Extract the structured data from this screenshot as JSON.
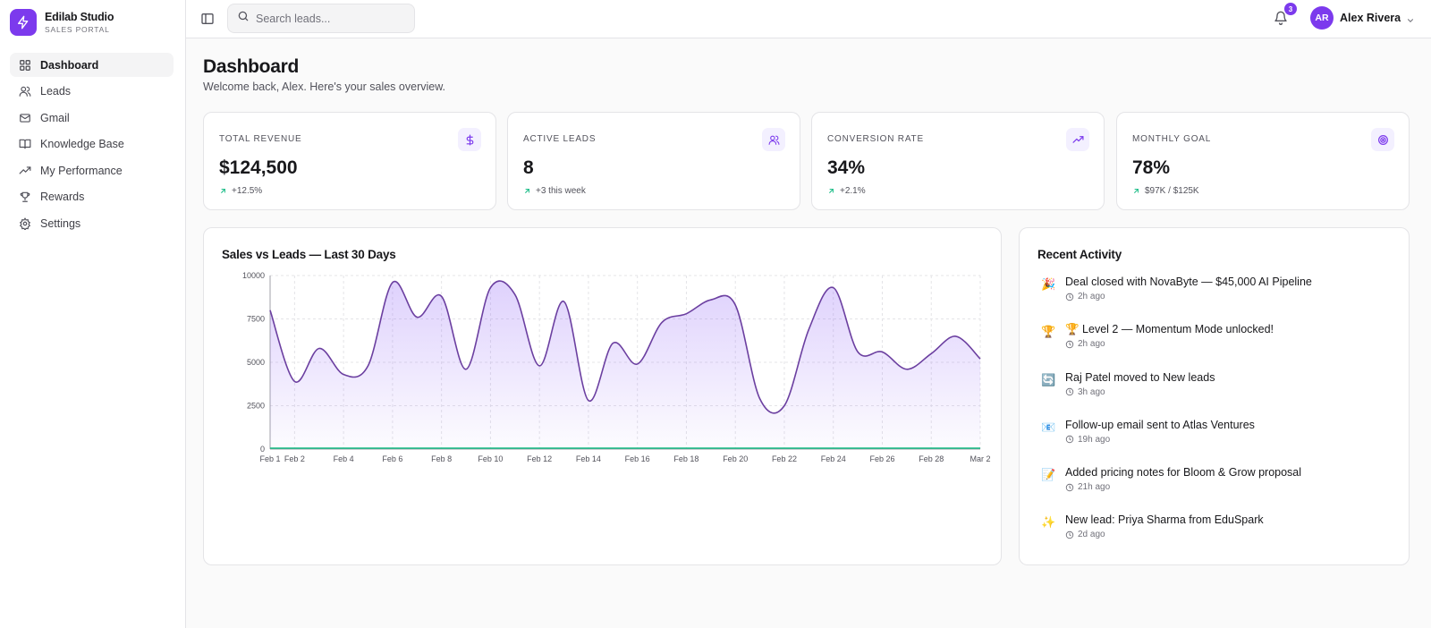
{
  "brand": {
    "name": "Edilab Studio",
    "subtitle": "SALES PORTAL"
  },
  "sidebar": {
    "items": [
      {
        "label": "Dashboard",
        "icon": "grid-icon",
        "active": true
      },
      {
        "label": "Leads",
        "icon": "users-icon"
      },
      {
        "label": "Gmail",
        "icon": "mail-icon"
      },
      {
        "label": "Knowledge Base",
        "icon": "book-icon"
      },
      {
        "label": "My Performance",
        "icon": "trending-up-icon"
      },
      {
        "label": "Rewards",
        "icon": "trophy-icon"
      },
      {
        "label": "Settings",
        "icon": "gear-icon"
      }
    ]
  },
  "header": {
    "search_placeholder": "Search leads...",
    "notifications_count": "3",
    "user": {
      "initials": "AR",
      "name": "Alex Rivera"
    }
  },
  "page": {
    "title": "Dashboard",
    "subtitle": "Welcome back, Alex. Here's your sales overview."
  },
  "stats": [
    {
      "label": "TOTAL REVENUE",
      "value": "$124,500",
      "delta": "+12.5%",
      "icon": "dollar-icon"
    },
    {
      "label": "ACTIVE LEADS",
      "value": "8",
      "delta": "+3 this week",
      "icon": "users-icon"
    },
    {
      "label": "CONVERSION RATE",
      "value": "34%",
      "delta": "+2.1%",
      "icon": "trending-up-icon"
    },
    {
      "label": "MONTHLY GOAL",
      "value": "78%",
      "delta": "$97K / $125K",
      "icon": "target-icon"
    }
  ],
  "colors": {
    "accent": "#7c3aed",
    "line": "#6b3fa0",
    "leads_line": "#10b981"
  },
  "chart_data": {
    "type": "area",
    "title": "Sales vs Leads — Last 30 Days",
    "x": [
      "Feb 1",
      "Feb 2",
      "Feb 3",
      "Feb 4",
      "Feb 5",
      "Feb 6",
      "Feb 7",
      "Feb 8",
      "Feb 9",
      "Feb 10",
      "Feb 11",
      "Feb 12",
      "Feb 13",
      "Feb 14",
      "Feb 15",
      "Feb 16",
      "Feb 17",
      "Feb 18",
      "Feb 19",
      "Feb 20",
      "Feb 21",
      "Feb 22",
      "Feb 23",
      "Feb 24",
      "Feb 25",
      "Feb 26",
      "Feb 27",
      "Feb 28",
      "Mar 1",
      "Mar 2"
    ],
    "x_tick_labels": [
      "Feb 1",
      "Feb 2",
      "Feb 4",
      "Feb 6",
      "Feb 8",
      "Feb 10",
      "Feb 12",
      "Feb 14",
      "Feb 16",
      "Feb 18",
      "Feb 20",
      "Feb 22",
      "Feb 24",
      "Feb 26",
      "Feb 28",
      "Mar 2"
    ],
    "y_ticks": [
      "0",
      "2500",
      "5000",
      "7500",
      "10000"
    ],
    "ylim": [
      0,
      10000
    ],
    "series": [
      {
        "values": [
          8000,
          3900,
          5800,
          4300,
          4800,
          9600,
          7600,
          8800,
          4600,
          9300,
          8900,
          4800,
          8500,
          2800,
          6100,
          4900,
          7300,
          7800,
          8600,
          8300,
          2900,
          2500,
          6900,
          9300,
          5600,
          5600,
          4600,
          5500,
          6500,
          5200
        ]
      },
      {
        "values": [
          0,
          0,
          0,
          0,
          0,
          0,
          0,
          0,
          0,
          0,
          0,
          0,
          0,
          0,
          0,
          0,
          0,
          0,
          0,
          0,
          0,
          0,
          0,
          0,
          0,
          0,
          0,
          0,
          0,
          0
        ]
      }
    ]
  },
  "activity": {
    "title": "Recent Activity",
    "items": [
      {
        "emoji": "🎉",
        "text": "Deal closed with NovaByte — $45,000 AI Pipeline",
        "time": "2h ago"
      },
      {
        "emoji": "🏆",
        "text": "🏆 Level 2 — Momentum Mode unlocked!",
        "time": "2h ago"
      },
      {
        "emoji": "🔄",
        "text": "Raj Patel moved to New leads",
        "time": "3h ago"
      },
      {
        "emoji": "📧",
        "text": "Follow-up email sent to Atlas Ventures",
        "time": "19h ago"
      },
      {
        "emoji": "📝",
        "text": "Added pricing notes for Bloom & Grow proposal",
        "time": "21h ago"
      },
      {
        "emoji": "✨",
        "text": "New lead: Priya Sharma from EduSpark",
        "time": "2d ago"
      }
    ]
  }
}
